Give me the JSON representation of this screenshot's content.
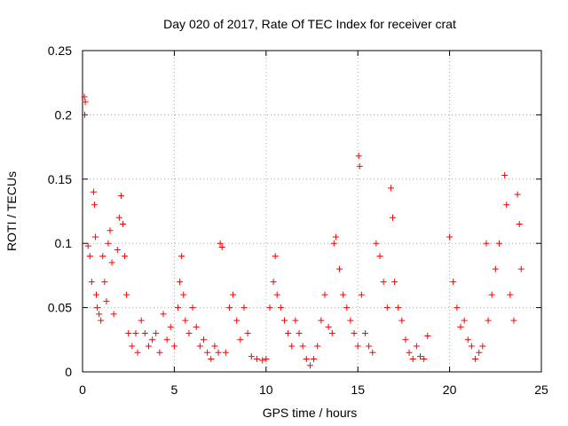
{
  "chart_data": {
    "type": "scatter",
    "title": "Day 020 of 2017, Rate Of TEC Index for receiver crat",
    "xlabel": "GPS time / hours",
    "ylabel": "ROTI / TECUs",
    "xlim": [
      0,
      25
    ],
    "ylim": [
      0,
      0.25
    ],
    "xticks": [
      "0",
      "5",
      "10",
      "15",
      "20",
      "25"
    ],
    "yticks": [
      "0",
      "0.05",
      "0.1",
      "0.15",
      "0.2",
      "0.25"
    ],
    "grid": true,
    "marker": "+",
    "color": "#ff0000",
    "series": [
      {
        "name": "ROTI",
        "points": [
          [
            0.1,
            0.214
          ],
          [
            0.12,
            0.2
          ],
          [
            0.15,
            0.21
          ],
          [
            0.3,
            0.098
          ],
          [
            0.4,
            0.09
          ],
          [
            0.5,
            0.07
          ],
          [
            0.6,
            0.14
          ],
          [
            0.65,
            0.13
          ],
          [
            0.7,
            0.105
          ],
          [
            0.75,
            0.06
          ],
          [
            0.8,
            0.05
          ],
          [
            0.9,
            0.045
          ],
          [
            1.0,
            0.04
          ],
          [
            1.1,
            0.09
          ],
          [
            1.2,
            0.07
          ],
          [
            1.3,
            0.055
          ],
          [
            1.4,
            0.1
          ],
          [
            1.5,
            0.11
          ],
          [
            1.6,
            0.085
          ],
          [
            1.7,
            0.045
          ],
          [
            1.9,
            0.095
          ],
          [
            2.0,
            0.12
          ],
          [
            2.1,
            0.137
          ],
          [
            2.2,
            0.115
          ],
          [
            2.3,
            0.09
          ],
          [
            2.4,
            0.06
          ],
          [
            2.5,
            0.03
          ],
          [
            2.7,
            0.02
          ],
          [
            2.9,
            0.03
          ],
          [
            3.0,
            0.015
          ],
          [
            3.2,
            0.04
          ],
          [
            3.4,
            0.03
          ],
          [
            3.6,
            0.02
          ],
          [
            3.8,
            0.025
          ],
          [
            4.0,
            0.03
          ],
          [
            4.2,
            0.015
          ],
          [
            4.4,
            0.045
          ],
          [
            4.6,
            0.025
          ],
          [
            4.8,
            0.035
          ],
          [
            5.0,
            0.02
          ],
          [
            5.2,
            0.05
          ],
          [
            5.3,
            0.07
          ],
          [
            5.4,
            0.09
          ],
          [
            5.5,
            0.06
          ],
          [
            5.6,
            0.04
          ],
          [
            5.8,
            0.03
          ],
          [
            6.0,
            0.05
          ],
          [
            6.2,
            0.035
          ],
          [
            6.4,
            0.02
          ],
          [
            6.6,
            0.025
          ],
          [
            6.8,
            0.015
          ],
          [
            7.0,
            0.01
          ],
          [
            7.2,
            0.02
          ],
          [
            7.4,
            0.015
          ],
          [
            7.5,
            0.1
          ],
          [
            7.6,
            0.097
          ],
          [
            7.8,
            0.015
          ],
          [
            8.0,
            0.05
          ],
          [
            8.2,
            0.06
          ],
          [
            8.4,
            0.04
          ],
          [
            8.6,
            0.025
          ],
          [
            8.8,
            0.05
          ],
          [
            9.0,
            0.03
          ],
          [
            9.2,
            0.012
          ],
          [
            9.5,
            0.01
          ],
          [
            9.8,
            0.009
          ],
          [
            10.0,
            0.01
          ],
          [
            10.2,
            0.05
          ],
          [
            10.4,
            0.07
          ],
          [
            10.5,
            0.09
          ],
          [
            10.6,
            0.06
          ],
          [
            10.8,
            0.05
          ],
          [
            11.0,
            0.04
          ],
          [
            11.2,
            0.03
          ],
          [
            11.4,
            0.02
          ],
          [
            11.6,
            0.04
          ],
          [
            11.8,
            0.03
          ],
          [
            12.0,
            0.02
          ],
          [
            12.2,
            0.01
          ],
          [
            12.4,
            0.005
          ],
          [
            12.6,
            0.01
          ],
          [
            12.8,
            0.02
          ],
          [
            13.0,
            0.04
          ],
          [
            13.2,
            0.06
          ],
          [
            13.4,
            0.035
          ],
          [
            13.6,
            0.03
          ],
          [
            13.7,
            0.1
          ],
          [
            13.8,
            0.105
          ],
          [
            14.0,
            0.08
          ],
          [
            14.2,
            0.06
          ],
          [
            14.4,
            0.05
          ],
          [
            14.6,
            0.04
          ],
          [
            14.8,
            0.03
          ],
          [
            15.0,
            0.02
          ],
          [
            15.05,
            0.168
          ],
          [
            15.1,
            0.16
          ],
          [
            15.2,
            0.06
          ],
          [
            15.4,
            0.03
          ],
          [
            15.6,
            0.02
          ],
          [
            15.8,
            0.015
          ],
          [
            16.0,
            0.1
          ],
          [
            16.2,
            0.09
          ],
          [
            16.4,
            0.07
          ],
          [
            16.6,
            0.05
          ],
          [
            16.8,
            0.143
          ],
          [
            16.9,
            0.12
          ],
          [
            17.0,
            0.07
          ],
          [
            17.2,
            0.05
          ],
          [
            17.4,
            0.04
          ],
          [
            17.6,
            0.025
          ],
          [
            17.8,
            0.015
          ],
          [
            18.0,
            0.01
          ],
          [
            18.2,
            0.02
          ],
          [
            18.4,
            0.012
          ],
          [
            18.6,
            0.01
          ],
          [
            18.8,
            0.028
          ],
          [
            20.0,
            0.105
          ],
          [
            20.2,
            0.07
          ],
          [
            20.4,
            0.05
          ],
          [
            20.6,
            0.035
          ],
          [
            20.8,
            0.04
          ],
          [
            21.0,
            0.025
          ],
          [
            21.2,
            0.02
          ],
          [
            21.4,
            0.01
          ],
          [
            21.6,
            0.015
          ],
          [
            21.8,
            0.02
          ],
          [
            22.0,
            0.1
          ],
          [
            22.1,
            0.04
          ],
          [
            22.3,
            0.06
          ],
          [
            22.5,
            0.08
          ],
          [
            22.7,
            0.1
          ],
          [
            23.0,
            0.153
          ],
          [
            23.1,
            0.13
          ],
          [
            23.3,
            0.06
          ],
          [
            23.5,
            0.04
          ],
          [
            23.7,
            0.138
          ],
          [
            23.8,
            0.115
          ],
          [
            23.9,
            0.08
          ]
        ]
      }
    ]
  }
}
